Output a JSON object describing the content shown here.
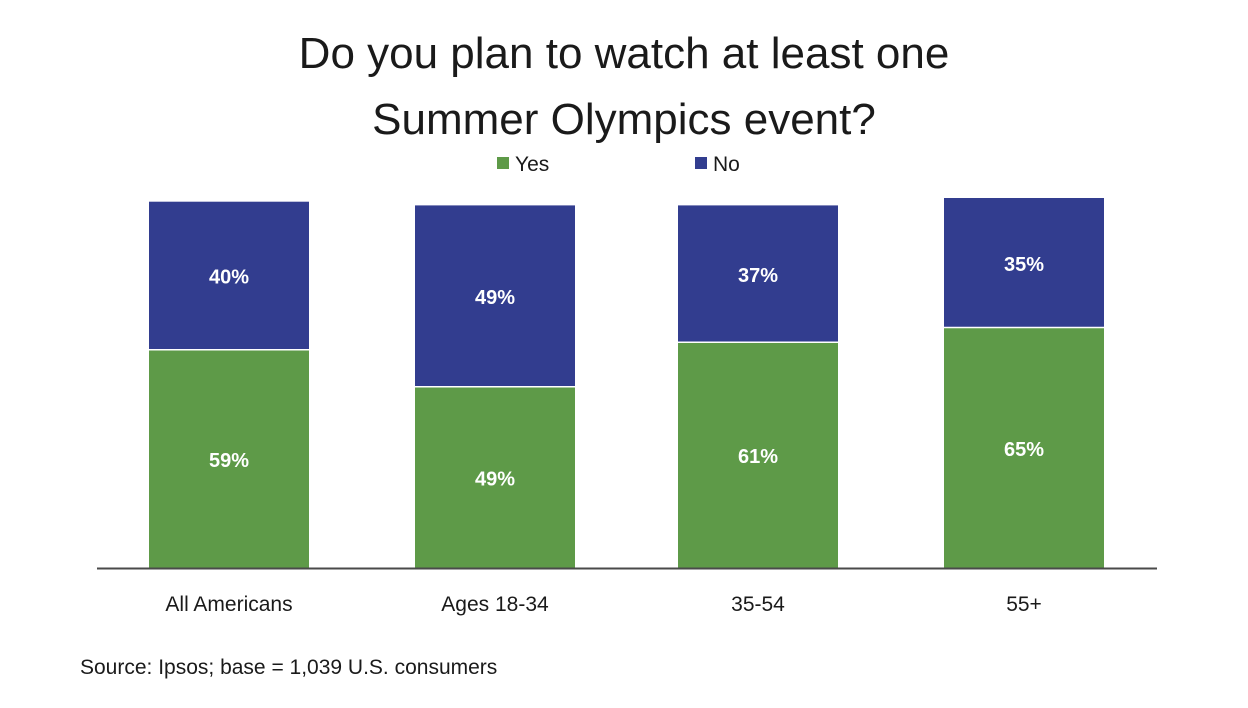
{
  "chart_data": {
    "type": "bar",
    "stacked": true,
    "title_lines": [
      "Do you plan to watch at least one",
      "Summer Olympics event?"
    ],
    "categories": [
      "All Americans",
      "Ages 18-34",
      "35-54",
      "55+"
    ],
    "series": [
      {
        "name": "Yes",
        "values": [
          59,
          49,
          61,
          65
        ],
        "labels": [
          "59%",
          "49%",
          "61%",
          "65%"
        ],
        "color": "#5e9a48"
      },
      {
        "name": "No",
        "values": [
          40,
          49,
          37,
          35
        ],
        "labels": [
          "40%",
          "49%",
          "37%",
          "35%"
        ],
        "color": "#323d8f"
      }
    ],
    "ylim": [
      0,
      100
    ],
    "grid": false,
    "legend_position": "top-center",
    "source": "Source: Ipsos; base = 1,039 U.S. consumers"
  }
}
